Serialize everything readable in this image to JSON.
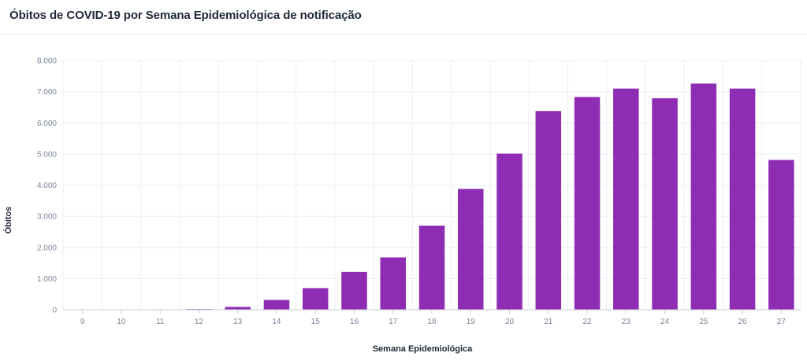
{
  "title": "Óbitos de COVID-19 por Semana Epidemiológica de notificação",
  "colors": {
    "bar": "#8e2db3",
    "grid": "#eceef3",
    "axis": "#c9cdd6"
  },
  "chart_data": {
    "type": "bar",
    "categories": [
      "9",
      "10",
      "11",
      "12",
      "13",
      "14",
      "15",
      "16",
      "17",
      "18",
      "19",
      "20",
      "21",
      "22",
      "23",
      "24",
      "25",
      "26",
      "27"
    ],
    "values": [
      0,
      1,
      6,
      22,
      92,
      315,
      695,
      1215,
      1680,
      2700,
      3880,
      5010,
      6380,
      6830,
      7100,
      6790,
      7260,
      7100,
      4810
    ],
    "ylim": [
      0,
      8000
    ],
    "yticks": [
      0,
      1000,
      2000,
      3000,
      4000,
      5000,
      6000,
      7000,
      8000
    ],
    "ytick_labels": [
      "0",
      "1.000",
      "2.000",
      "3.000",
      "4.000",
      "5.000",
      "6.000",
      "7.000",
      "8.000"
    ],
    "xlabel": "Semana Epidemiológica",
    "ylabel": "Óbitos",
    "grid": true
  }
}
